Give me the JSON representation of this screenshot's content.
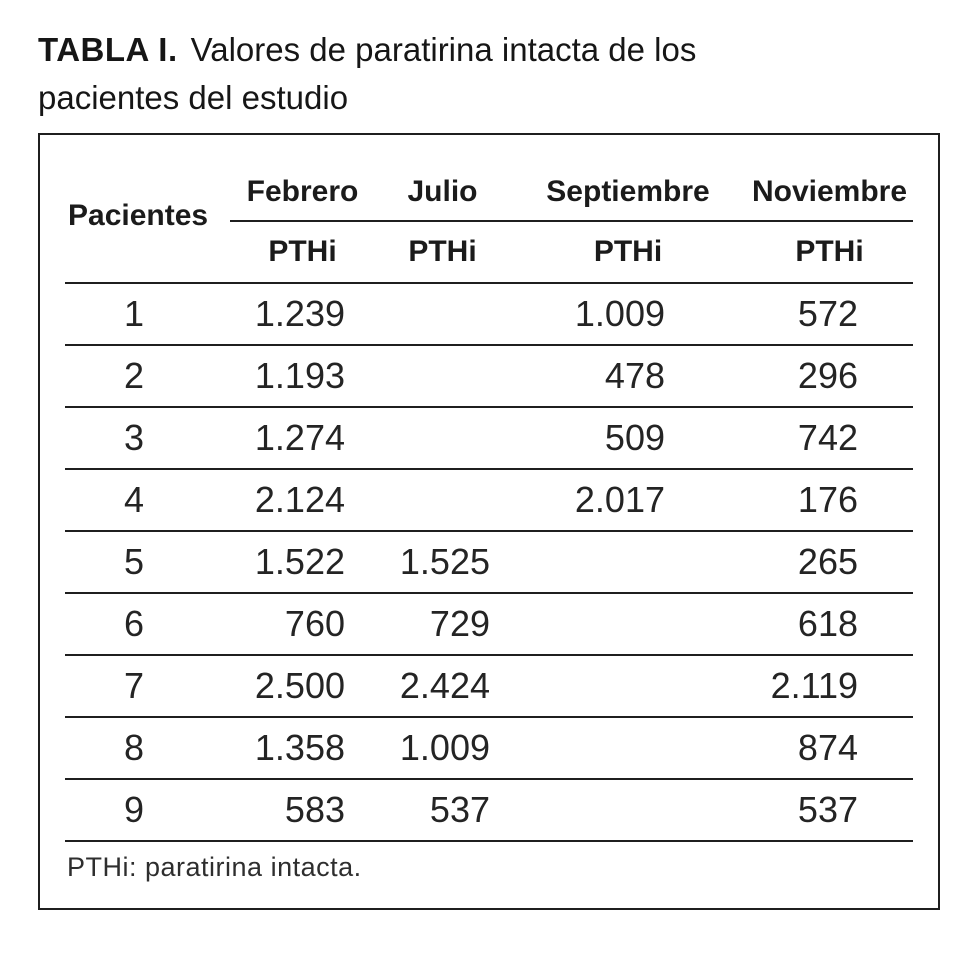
{
  "title": {
    "label": "TABLA I.",
    "text": "Valores de paratirina intacta de los pacientes del estudio"
  },
  "table": {
    "corner_header": "Pacientes",
    "months": [
      "Febrero",
      "Julio",
      "Septiembre",
      "Noviembre"
    ],
    "subheader_label": "PTHi",
    "rows": [
      {
        "patient": "1",
        "values": [
          "1.239",
          "",
          "1.009",
          "572"
        ]
      },
      {
        "patient": "2",
        "values": [
          "1.193",
          "",
          "478",
          "296"
        ]
      },
      {
        "patient": "3",
        "values": [
          "1.274",
          "",
          "509",
          "742"
        ]
      },
      {
        "patient": "4",
        "values": [
          "2.124",
          "",
          "2.017",
          "176"
        ]
      },
      {
        "patient": "5",
        "values": [
          "1.522",
          "1.525",
          "",
          "265"
        ]
      },
      {
        "patient": "6",
        "values": [
          "760",
          "729",
          "",
          "618"
        ]
      },
      {
        "patient": "7",
        "values": [
          "2.500",
          "2.424",
          "",
          "2.119"
        ]
      },
      {
        "patient": "8",
        "values": [
          "1.358",
          "1.009",
          "",
          "874"
        ]
      },
      {
        "patient": "9",
        "values": [
          "583",
          "537",
          "",
          "537"
        ]
      }
    ],
    "footnote": "PTHi: paratirina intacta."
  }
}
